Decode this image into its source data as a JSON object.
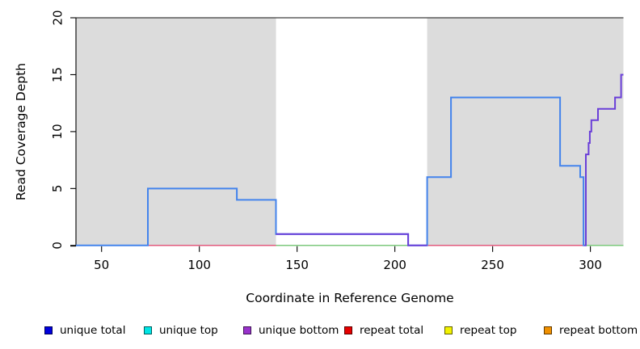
{
  "figure": {
    "background": "#ffffff",
    "plot_background": "#ffffff",
    "shade_color": "#dcdcdc"
  },
  "y_axis": {
    "title": "Read Coverage Depth",
    "ticks": [
      0,
      5,
      10,
      15,
      20
    ],
    "range": [
      0,
      20
    ]
  },
  "x_axis": {
    "title": "Coordinate in Reference Genome",
    "ticks": [
      50,
      100,
      150,
      200,
      250,
      300
    ],
    "range": [
      36.9,
      316.9
    ]
  },
  "legend": {
    "items": [
      {
        "label": "unique total",
        "color": "#0000dd"
      },
      {
        "label": "unique top",
        "color": "#00e5e5"
      },
      {
        "label": "unique bottom",
        "color": "#9932cc"
      },
      {
        "label": "repeat total",
        "color": "#e60000"
      },
      {
        "label": "repeat top",
        "color": "#f2f200"
      },
      {
        "label": "repeat bottom",
        "color": "#f09000"
      }
    ]
  },
  "chart_data": {
    "type": "line",
    "subtype": "step-coverage",
    "title": "",
    "xlabel": "Coordinate in Reference Genome",
    "ylabel": "Read Coverage Depth",
    "xlim": [
      36.9,
      316.9
    ],
    "ylim": [
      0,
      20
    ],
    "grid": false,
    "legend_position": "bottom",
    "top_boundary_value": 20,
    "shaded_regions": [
      [
        36.9,
        139.2
      ],
      [
        216.5,
        316.9
      ]
    ],
    "series": [
      {
        "name": "unique total",
        "line_color": "#4484ec",
        "steps": [
          [
            36.9,
            73.7,
            0
          ],
          [
            73.7,
            119.2,
            5
          ],
          [
            119.2,
            139.2,
            4
          ],
          [
            139.2,
            206.8,
            1
          ],
          [
            206.8,
            216.5,
            0
          ],
          [
            216.5,
            228.7,
            6
          ],
          [
            228.7,
            284.5,
            13
          ],
          [
            284.5,
            294.8,
            7
          ],
          [
            294.8,
            296.5,
            6
          ],
          [
            296.5,
            296.9,
            0
          ]
        ]
      },
      {
        "name": "unique top",
        "line_color": "#00e5e5",
        "steps": [
          [
            36.9,
            316.9,
            0
          ]
        ]
      },
      {
        "name": "unique bottom",
        "line_color": "#6a3fd8",
        "steps": [
          [
            139.2,
            206.8,
            1
          ],
          [
            206.8,
            216.5,
            0
          ],
          [
            296.9,
            297.7,
            0
          ],
          [
            297.7,
            299.1,
            8
          ],
          [
            299.1,
            299.7,
            9
          ],
          [
            299.7,
            300.5,
            10
          ],
          [
            300.5,
            303.9,
            11
          ],
          [
            303.9,
            312.6,
            12
          ],
          [
            312.6,
            315.7,
            13
          ],
          [
            315.7,
            316.9,
            15
          ]
        ]
      },
      {
        "name": "repeat total",
        "line_color": "#e05a7d",
        "steps": [
          [
            36.9,
            296.9,
            0
          ]
        ]
      },
      {
        "name": "repeat top",
        "line_color": "#f2f200",
        "steps": [
          [
            36.9,
            316.9,
            0
          ]
        ]
      },
      {
        "name": "repeat bottom",
        "line_color": "#f09000",
        "steps": [
          [
            36.9,
            316.9,
            0
          ]
        ]
      }
    ],
    "overlap_baseline_segments": {
      "color": "#7cc87c",
      "steps": [
        [
          139.2,
          216.5,
          0
        ],
        [
          296.5,
          316.9,
          0
        ]
      ]
    }
  }
}
